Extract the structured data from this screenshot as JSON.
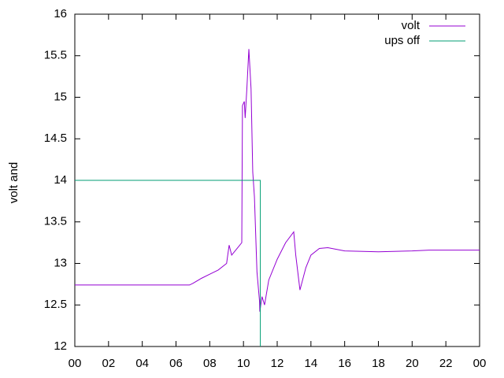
{
  "chart_data": {
    "type": "line",
    "ylabel": "volt and",
    "xlim": [
      0,
      24
    ],
    "ylim": [
      12,
      16
    ],
    "xticks": [
      {
        "value": 0,
        "label": "00"
      },
      {
        "value": 2,
        "label": "02"
      },
      {
        "value": 4,
        "label": "04"
      },
      {
        "value": 6,
        "label": "06"
      },
      {
        "value": 8,
        "label": "08"
      },
      10,
      12,
      14,
      16,
      18,
      20,
      22,
      {
        "value": 24,
        "label": "00"
      }
    ],
    "yticks": [
      12,
      12.5,
      13,
      13.5,
      14,
      14.5,
      15,
      15.5,
      16
    ],
    "legend": "top-right",
    "series": [
      {
        "name": "volt",
        "color": "#9400d3",
        "x": [
          0,
          3,
          6.8,
          7,
          7.5,
          8,
          8.5,
          9,
          9.15,
          9.3,
          9.5,
          9.7,
          9.9,
          9.94,
          10.05,
          10.1,
          10.2,
          10.32,
          10.45,
          10.55,
          10.65,
          10.8,
          10.95,
          10.97,
          11.1,
          11.25,
          11.5,
          12,
          12.5,
          12.98,
          13.1,
          13.35,
          13.7,
          14,
          14.5,
          15,
          16,
          18,
          20,
          21,
          24
        ],
        "values": [
          12.74,
          12.74,
          12.74,
          12.76,
          12.82,
          12.87,
          12.92,
          13.0,
          13.22,
          13.1,
          13.15,
          13.2,
          13.25,
          14.9,
          14.95,
          14.75,
          15.1,
          15.58,
          15.1,
          14.1,
          13.8,
          12.9,
          12.55,
          12.42,
          12.6,
          12.5,
          12.8,
          13.05,
          13.25,
          13.38,
          13.1,
          12.68,
          12.95,
          13.1,
          13.18,
          13.19,
          13.15,
          13.14,
          13.15,
          13.16,
          13.16
        ]
      },
      {
        "name": "ups off",
        "color": "#009e73",
        "x": [
          0,
          11,
          11
        ],
        "values": [
          14,
          14,
          12
        ]
      }
    ]
  }
}
